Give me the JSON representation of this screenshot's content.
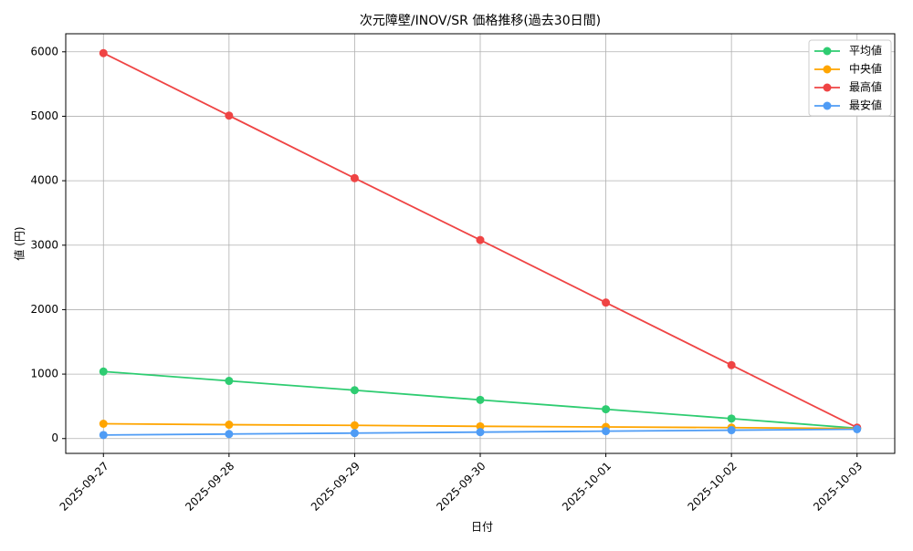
{
  "chart_data": {
    "type": "line",
    "title": "次元障壁/INOV/SR 価格推移(過去30日間)",
    "x_label": "日付",
    "y_label": "値 (円)",
    "categories": [
      "2025-09-27",
      "2025-09-28",
      "2025-09-29",
      "2025-09-30",
      "2025-10-01",
      "2025-10-02",
      "2025-10-03"
    ],
    "series": [
      {
        "name": "平均値",
        "color": "#2ecc71",
        "values": [
          1040,
          895,
          750,
          600,
          455,
          310,
          160
        ]
      },
      {
        "name": "中央値",
        "color": "#ffa500",
        "values": [
          230,
          215,
          205,
          190,
          180,
          170,
          155
        ]
      },
      {
        "name": "最高値",
        "color": "#ef4444",
        "values": [
          5980,
          5010,
          4040,
          3080,
          2110,
          1140,
          170
        ]
      },
      {
        "name": "最安値",
        "color": "#4f9cf5",
        "values": [
          55,
          70,
          85,
          100,
          115,
          130,
          145
        ]
      }
    ],
    "ylim": [
      -230,
      6280
    ],
    "yticks": [
      0,
      1000,
      2000,
      3000,
      4000,
      5000,
      6000
    ],
    "grid": true,
    "legend": "upper right"
  }
}
